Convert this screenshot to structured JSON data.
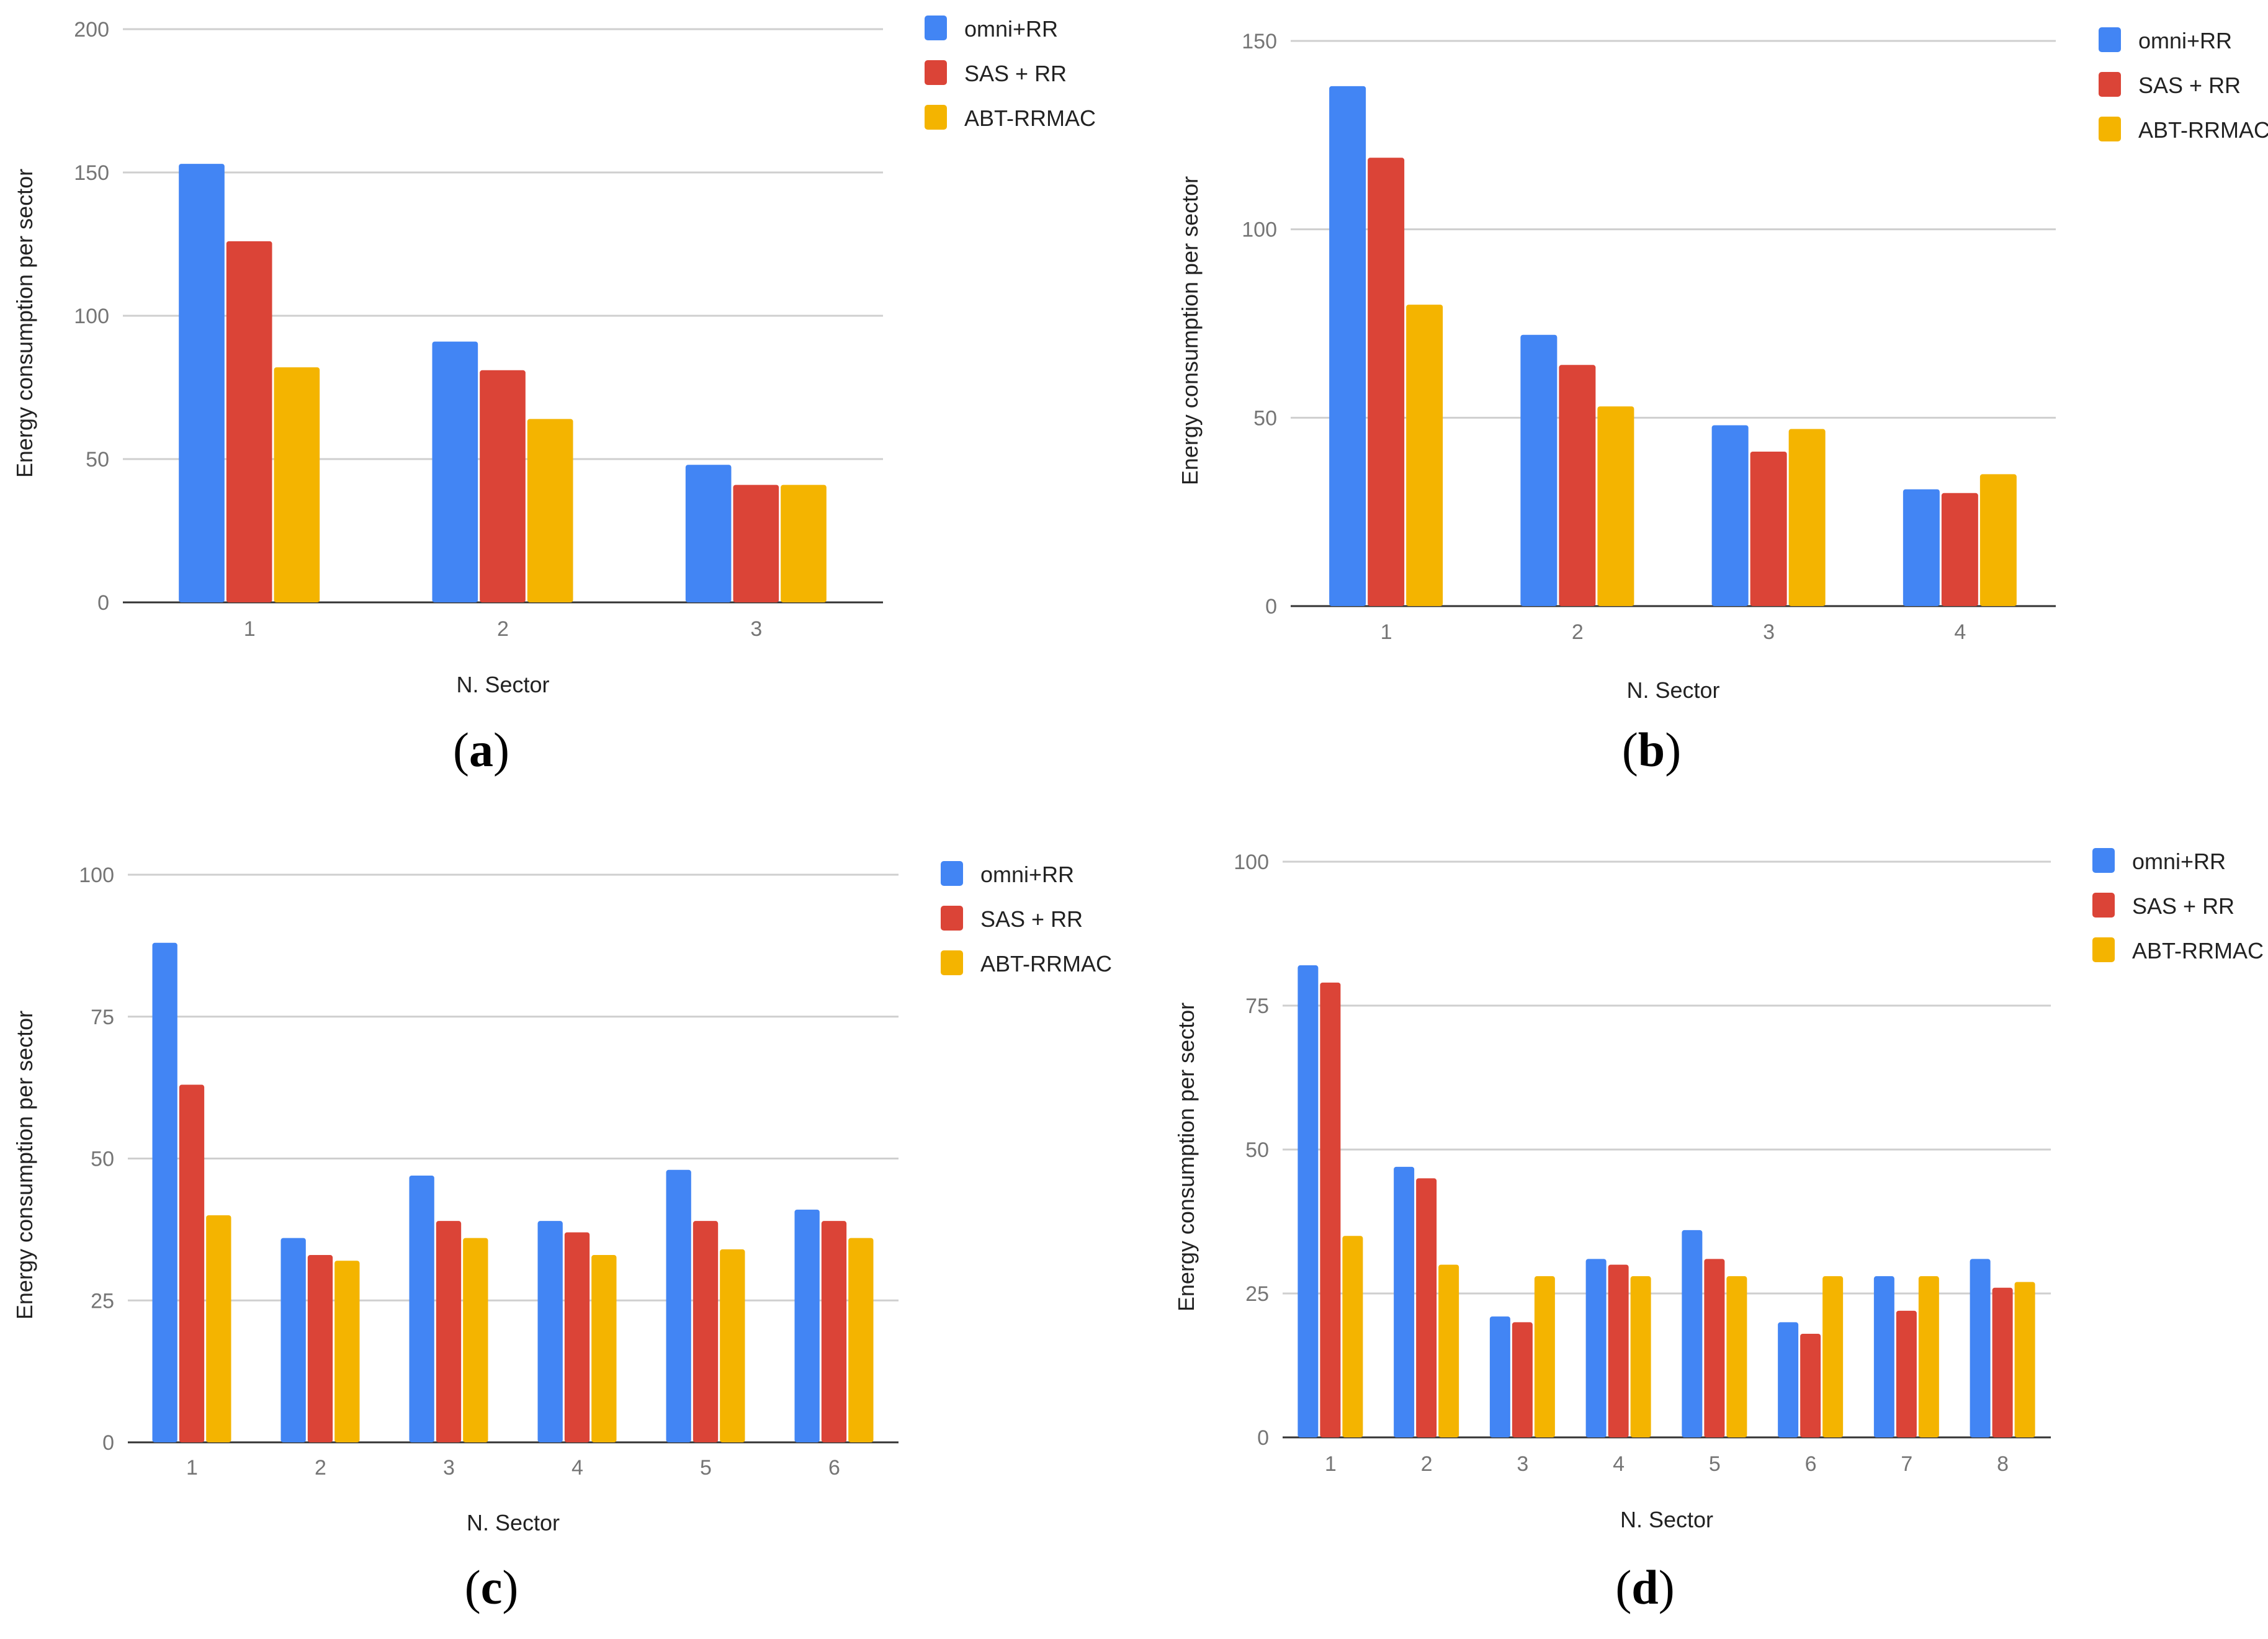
{
  "chart_data": [
    {
      "type": "bar",
      "panel_label": "a",
      "xlabel": "N. Sector",
      "ylabel": "Energy consumption per sector",
      "ylim": [
        0,
        200
      ],
      "yticks": [
        0,
        50,
        100,
        150,
        200
      ],
      "grid": true,
      "legend_position": "top-right",
      "categories": [
        "1",
        "2",
        "3"
      ],
      "series": [
        {
          "name": "omni+RR",
          "color": "#4285F4",
          "values": [
            153,
            91,
            48
          ]
        },
        {
          "name": "SAS + RR",
          "color": "#DB4437",
          "values": [
            126,
            81,
            41
          ]
        },
        {
          "name": "ABT-RRMAC",
          "color": "#F4B400",
          "values": [
            82,
            64,
            41
          ]
        }
      ]
    },
    {
      "type": "bar",
      "panel_label": "b",
      "xlabel": "N. Sector",
      "ylabel": "Energy consumption per sector",
      "ylim": [
        0,
        150
      ],
      "yticks": [
        0,
        50,
        100,
        150
      ],
      "grid": true,
      "legend_position": "top-right",
      "categories": [
        "1",
        "2",
        "3",
        "4"
      ],
      "series": [
        {
          "name": "omni+RR",
          "color": "#4285F4",
          "values": [
            138,
            72,
            48,
            31
          ]
        },
        {
          "name": "SAS + RR",
          "color": "#DB4437",
          "values": [
            119,
            64,
            41,
            30
          ]
        },
        {
          "name": "ABT-RRMAC",
          "color": "#F4B400",
          "values": [
            80,
            53,
            47,
            35
          ]
        }
      ]
    },
    {
      "type": "bar",
      "panel_label": "c",
      "xlabel": "N. Sector",
      "ylabel": "Energy consumption per sector",
      "ylim": [
        0,
        100
      ],
      "yticks": [
        0,
        25,
        50,
        75,
        100
      ],
      "grid": true,
      "legend_position": "top-right",
      "categories": [
        "1",
        "2",
        "3",
        "4",
        "5",
        "6"
      ],
      "series": [
        {
          "name": "omni+RR",
          "color": "#4285F4",
          "values": [
            88,
            36,
            47,
            39,
            48,
            41
          ]
        },
        {
          "name": "SAS + RR",
          "color": "#DB4437",
          "values": [
            63,
            33,
            39,
            37,
            39,
            39
          ]
        },
        {
          "name": "ABT-RRMAC",
          "color": "#F4B400",
          "values": [
            40,
            32,
            36,
            33,
            34,
            36
          ]
        }
      ]
    },
    {
      "type": "bar",
      "panel_label": "d",
      "xlabel": "N. Sector",
      "ylabel": "Energy consumption per sector",
      "ylim": [
        0,
        100
      ],
      "yticks": [
        0,
        25,
        50,
        75,
        100
      ],
      "grid": true,
      "legend_position": "top-right",
      "categories": [
        "1",
        "2",
        "3",
        "4",
        "5",
        "6",
        "7",
        "8"
      ],
      "series": [
        {
          "name": "omni+RR",
          "color": "#4285F4",
          "values": [
            82,
            47,
            21,
            31,
            36,
            20,
            28,
            31
          ]
        },
        {
          "name": "SAS + RR",
          "color": "#DB4437",
          "values": [
            79,
            45,
            20,
            30,
            31,
            18,
            22,
            26
          ]
        },
        {
          "name": "ABT-RRMAC",
          "color": "#F4B400",
          "values": [
            35,
            30,
            28,
            28,
            28,
            28,
            28,
            27
          ]
        }
      ]
    }
  ]
}
